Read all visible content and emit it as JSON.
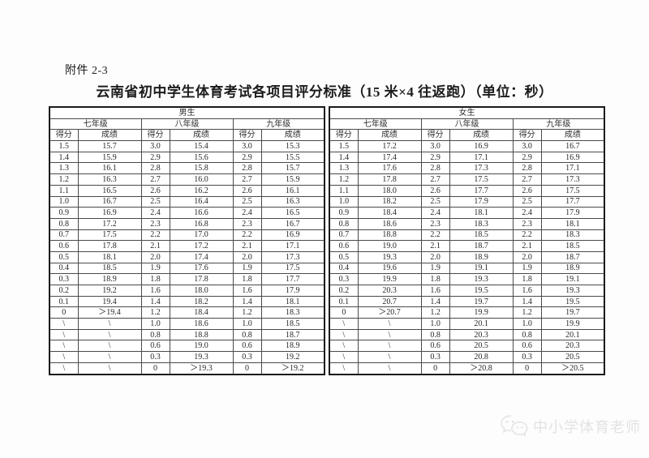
{
  "page": {
    "attachment_label": "附件 2-3",
    "title": "云南省初中学生体育考试各项目评分标准（15 米×4 往返跑）（单位：秒）"
  },
  "table": {
    "sections": [
      {
        "gender": "男生",
        "grades": [
          "七年级",
          "八年级",
          "九年级"
        ],
        "score_label": "得分",
        "result_label": "成绩",
        "rows": [
          [
            "1.5",
            "15.7",
            "3.0",
            "15.4",
            "3.0",
            "15.3"
          ],
          [
            "1.4",
            "15.9",
            "2.9",
            "15.6",
            "2.9",
            "15.5"
          ],
          [
            "1.3",
            "16.1",
            "2.8",
            "15.8",
            "2.8",
            "15.7"
          ],
          [
            "1.2",
            "16.3",
            "2.7",
            "16.0",
            "2.7",
            "15.9"
          ],
          [
            "1.1",
            "16.5",
            "2.6",
            "16.2",
            "2.6",
            "16.1"
          ],
          [
            "1.0",
            "16.7",
            "2.5",
            "16.4",
            "2.5",
            "16.3"
          ],
          [
            "0.9",
            "16.9",
            "2.4",
            "16.6",
            "2.4",
            "16.5"
          ],
          [
            "0.8",
            "17.2",
            "2.3",
            "16.8",
            "2.3",
            "16.7"
          ],
          [
            "0.7",
            "17.5",
            "2.2",
            "17.0",
            "2.2",
            "16.9"
          ],
          [
            "0.6",
            "17.8",
            "2.1",
            "17.2",
            "2.1",
            "17.1"
          ],
          [
            "0.5",
            "18.1",
            "2.0",
            "17.4",
            "2.0",
            "17.3"
          ],
          [
            "0.4",
            "18.5",
            "1.9",
            "17.6",
            "1.9",
            "17.5"
          ],
          [
            "0.3",
            "18.9",
            "1.8",
            "17.8",
            "1.8",
            "17.7"
          ],
          [
            "0.2",
            "19.2",
            "1.6",
            "18.0",
            "1.6",
            "17.9"
          ],
          [
            "0.1",
            "19.4",
            "1.4",
            "18.2",
            "1.4",
            "18.1"
          ],
          [
            "0",
            "＞19.4",
            "1.2",
            "18.4",
            "1.2",
            "18.3"
          ],
          [
            "\\",
            "\\",
            "1.0",
            "18.6",
            "1.0",
            "18.5"
          ],
          [
            "\\",
            "\\",
            "0.8",
            "18.8",
            "0.8",
            "18.7"
          ],
          [
            "\\",
            "\\",
            "0.6",
            "19.0",
            "0.6",
            "18.9"
          ],
          [
            "\\",
            "\\",
            "0.3",
            "19.3",
            "0.3",
            "19.2"
          ],
          [
            "\\",
            "\\",
            "0",
            "＞19.3",
            "0",
            "＞19.2"
          ]
        ]
      },
      {
        "gender": "女生",
        "grades": [
          "七年级",
          "八年级",
          "九年级"
        ],
        "score_label": "得分",
        "result_label": "成绩",
        "rows": [
          [
            "1.5",
            "17.2",
            "3.0",
            "16.9",
            "3.0",
            "16.7"
          ],
          [
            "1.4",
            "17.4",
            "2.9",
            "17.1",
            "2.9",
            "16.9"
          ],
          [
            "1.3",
            "17.6",
            "2.8",
            "17.3",
            "2.8",
            "17.1"
          ],
          [
            "1.2",
            "17.8",
            "2.7",
            "17.5",
            "2.7",
            "17.3"
          ],
          [
            "1.1",
            "18.0",
            "2.6",
            "17.7",
            "2.6",
            "17.5"
          ],
          [
            "1.0",
            "18.2",
            "2.5",
            "17.9",
            "2.5",
            "17.7"
          ],
          [
            "0.9",
            "18.4",
            "2.4",
            "18.1",
            "2.4",
            "17.9"
          ],
          [
            "0.8",
            "18.6",
            "2.3",
            "18.3",
            "2.3",
            "18.1"
          ],
          [
            "0.7",
            "18.8",
            "2.2",
            "18.5",
            "2.2",
            "18.3"
          ],
          [
            "0.6",
            "19.0",
            "2.1",
            "18.7",
            "2.1",
            "18.5"
          ],
          [
            "0.5",
            "19.3",
            "2.0",
            "18.9",
            "2.0",
            "18.7"
          ],
          [
            "0.4",
            "19.6",
            "1.9",
            "19.1",
            "1.9",
            "18.9"
          ],
          [
            "0.3",
            "19.9",
            "1.8",
            "19.3",
            "1.8",
            "19.1"
          ],
          [
            "0.2",
            "20.3",
            "1.6",
            "19.5",
            "1.6",
            "19.3"
          ],
          [
            "0.1",
            "20.7",
            "1.4",
            "19.7",
            "1.4",
            "19.5"
          ],
          [
            "0",
            "＞20.7",
            "1.2",
            "19.9",
            "1.2",
            "19.7"
          ],
          [
            "\\",
            "\\",
            "1.0",
            "20.1",
            "1.0",
            "19.9"
          ],
          [
            "\\",
            "\\",
            "0.8",
            "20.3",
            "0.8",
            "20.1"
          ],
          [
            "\\",
            "\\",
            "0.6",
            "20.5",
            "0.6",
            "20.3"
          ],
          [
            "\\",
            "\\",
            "0.3",
            "20.8",
            "0.3",
            "20.5"
          ],
          [
            "\\",
            "\\",
            "0",
            "＞20.8",
            "0",
            "＞20.5"
          ]
        ]
      }
    ]
  },
  "watermark": {
    "icon": "wechat-logo",
    "text": "中小学体育老师",
    "color": "#e3e3e3"
  },
  "colors": {
    "page_background": "#fdfdfd",
    "table_border": "#1a1a1a",
    "text": "#262626"
  }
}
